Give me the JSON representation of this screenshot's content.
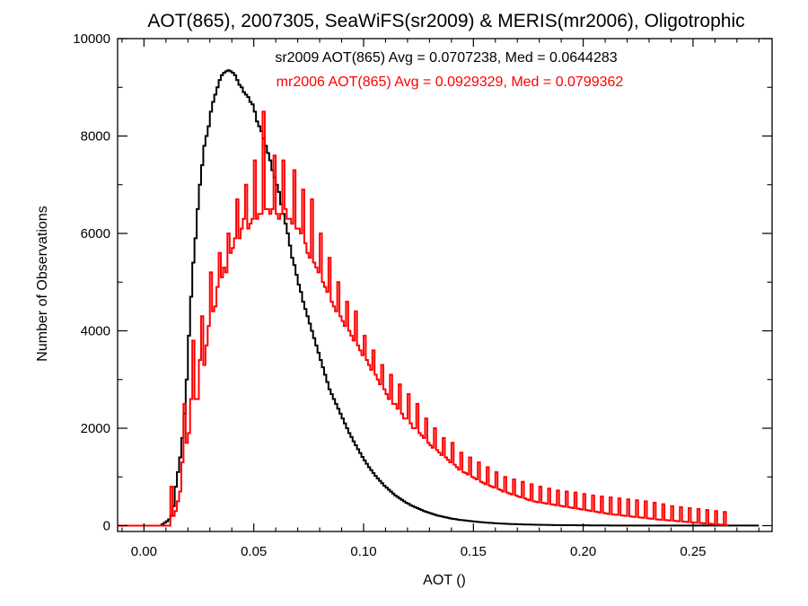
{
  "chart_data": {
    "type": "histogram",
    "title": "AOT(865), 2007305, SeaWiFS(sr2009) & MERIS(mr2006), Oligotrophic",
    "xlabel": "AOT ()",
    "ylabel": "Number of Observations",
    "xlim": [
      -0.012,
      0.286
    ],
    "ylim": [
      -120,
      10000
    ],
    "x_ticks": [
      0.0,
      0.05,
      0.1,
      0.15,
      0.2,
      0.25
    ],
    "x_tick_labels": [
      "0.00",
      "0.05",
      "0.10",
      "0.15",
      "0.20",
      "0.25"
    ],
    "y_ticks": [
      0,
      2000,
      4000,
      6000,
      8000,
      10000
    ],
    "y_tick_labels": [
      "0",
      "2000",
      "4000",
      "6000",
      "8000",
      "10000"
    ],
    "grid": false,
    "series": [
      {
        "name": "sr2009",
        "color": "#000000",
        "stats_text": "sr2009 AOT(865) Avg = 0.0707238, Med = 0.0644283",
        "bin_width": 0.001,
        "x_start": -0.012,
        "counts": [
          0,
          0,
          0,
          0,
          0,
          0,
          0,
          0,
          0,
          0,
          0,
          0,
          0,
          0,
          0,
          0,
          0,
          0,
          0,
          0,
          30,
          60,
          90,
          130,
          200,
          400,
          800,
          1100,
          1400,
          1800,
          2300,
          3000,
          3900,
          4700,
          5400,
          5900,
          6500,
          7000,
          7400,
          7800,
          8000,
          8200,
          8500,
          8700,
          8850,
          9000,
          9150,
          9250,
          9300,
          9330,
          9350,
          9330,
          9300,
          9250,
          9150,
          9050,
          9000,
          8900,
          8850,
          8800,
          8700,
          8650,
          8500,
          8300,
          8200,
          8100,
          7950,
          7800,
          7650,
          7500,
          7300,
          7150,
          7000,
          6850,
          6600,
          6400,
          6200,
          6000,
          5750,
          5500,
          5350,
          5150,
          4950,
          4800,
          4600,
          4450,
          4300,
          4150,
          4000,
          3850,
          3700,
          3550,
          3400,
          3250,
          3100,
          2950,
          2800,
          2700,
          2600,
          2500,
          2400,
          2300,
          2200,
          2100,
          2000,
          1900,
          1820,
          1730,
          1650,
          1570,
          1490,
          1410,
          1340,
          1270,
          1200,
          1140,
          1080,
          1020,
          970,
          920,
          870,
          820,
          780,
          740,
          700,
          660,
          620,
          590,
          560,
          530,
          500,
          470,
          450,
          420,
          400,
          380,
          360,
          340,
          320,
          300,
          285,
          270,
          255,
          240,
          225,
          210,
          200,
          190,
          180,
          170,
          160,
          150,
          140,
          135,
          130,
          120,
          115,
          110,
          105,
          100,
          95,
          90,
          85,
          80,
          76,
          72,
          68,
          64,
          60,
          57,
          54,
          51,
          48,
          45,
          43,
          41,
          39,
          37,
          35,
          33,
          31,
          30,
          28,
          27,
          25,
          24,
          23,
          22,
          21,
          20,
          19,
          18,
          17,
          16,
          15,
          15,
          14,
          13,
          12,
          12,
          11,
          11,
          10,
          10,
          9,
          9,
          8,
          8,
          8,
          7,
          7,
          7,
          6,
          6,
          6,
          5,
          5,
          5,
          5,
          4,
          4,
          4,
          4,
          4,
          3,
          3,
          3,
          3,
          3,
          3,
          2,
          2,
          2,
          2,
          2,
          2,
          2,
          2,
          2,
          2,
          2,
          2,
          2,
          2,
          2,
          2,
          2,
          2,
          2,
          2,
          2,
          2,
          2,
          2,
          2,
          2,
          2,
          2,
          2,
          2,
          2,
          2,
          2,
          2,
          2,
          2,
          2,
          2,
          2,
          2,
          2,
          2,
          2,
          2,
          2,
          2,
          2,
          2,
          2,
          2,
          2,
          2,
          2,
          2,
          2,
          2,
          2,
          2,
          2,
          2,
          2,
          2
        ]
      },
      {
        "name": "mr2006",
        "color": "#ff0000",
        "stats_text": "mr2006 AOT(865) Avg = 0.0929329, Med = 0.0799362",
        "bin_width": 0.001,
        "x_start": -0.012,
        "counts": [
          0,
          0,
          0,
          0,
          0,
          0,
          0,
          0,
          0,
          0,
          0,
          0,
          0,
          0,
          0,
          0,
          0,
          0,
          0,
          0,
          0,
          0,
          0,
          0,
          800,
          200,
          300,
          500,
          700,
          1300,
          2500,
          1700,
          1900,
          2600,
          3800,
          2600,
          2600,
          3400,
          4300,
          3300,
          3700,
          4100,
          5200,
          4400,
          4500,
          4900,
          5600,
          5100,
          5300,
          5200,
          6000,
          5600,
          5700,
          5900,
          6700,
          5900,
          6100,
          6300,
          7000,
          6100,
          6200,
          6300,
          7500,
          6300,
          6400,
          6400,
          8500,
          6500,
          6500,
          6400,
          6500,
          7600,
          6400,
          6300,
          6400,
          7500,
          6500,
          6300,
          6300,
          6200,
          7300,
          6100,
          6100,
          6000,
          6900,
          5800,
          5600,
          5500,
          6700,
          5400,
          5300,
          5200,
          6000,
          5000,
          4900,
          4800,
          5500,
          4600,
          4500,
          4400,
          5000,
          4300,
          4200,
          4100,
          4600,
          4000,
          3900,
          3800,
          4400,
          3700,
          3600,
          3500,
          3900,
          3400,
          3300,
          3200,
          3600,
          3100,
          3000,
          2900,
          3300,
          2800,
          2700,
          2600,
          3100,
          2500,
          2500,
          2400,
          2900,
          2300,
          2200,
          2200,
          2700,
          2100,
          2000,
          2000,
          2500,
          1900,
          1850,
          1800,
          2200,
          1700,
          1650,
          1600,
          2000,
          1550,
          1500,
          1450,
          1800,
          1400,
          1350,
          1300,
          1700,
          1250,
          1200,
          1150,
          1500,
          1100,
          1080,
          1050,
          1400,
          1000,
          980,
          950,
          1300,
          900,
          880,
          850,
          1200,
          820,
          800,
          780,
          1100,
          750,
          730,
          700,
          1000,
          680,
          660,
          640,
          950,
          620,
          600,
          580,
          900,
          560,
          540,
          520,
          850,
          500,
          490,
          480,
          800,
          470,
          460,
          450,
          760,
          440,
          430,
          420,
          720,
          410,
          400,
          390,
          700,
          380,
          370,
          360,
          680,
          350,
          340,
          330,
          650,
          320,
          310,
          300,
          620,
          290,
          280,
          270,
          600,
          260,
          250,
          240,
          580,
          230,
          225,
          220,
          560,
          210,
          205,
          200,
          540,
          190,
          185,
          180,
          520,
          170,
          165,
          160,
          500,
          150,
          145,
          140,
          470,
          130,
          125,
          120,
          440,
          115,
          110,
          105,
          400,
          100,
          95,
          90,
          380,
          85,
          80,
          75,
          360,
          70,
          65,
          60,
          340,
          55,
          50,
          45,
          320,
          40,
          35,
          30,
          300,
          25,
          20,
          15,
          280,
          10
        ]
      }
    ]
  }
}
